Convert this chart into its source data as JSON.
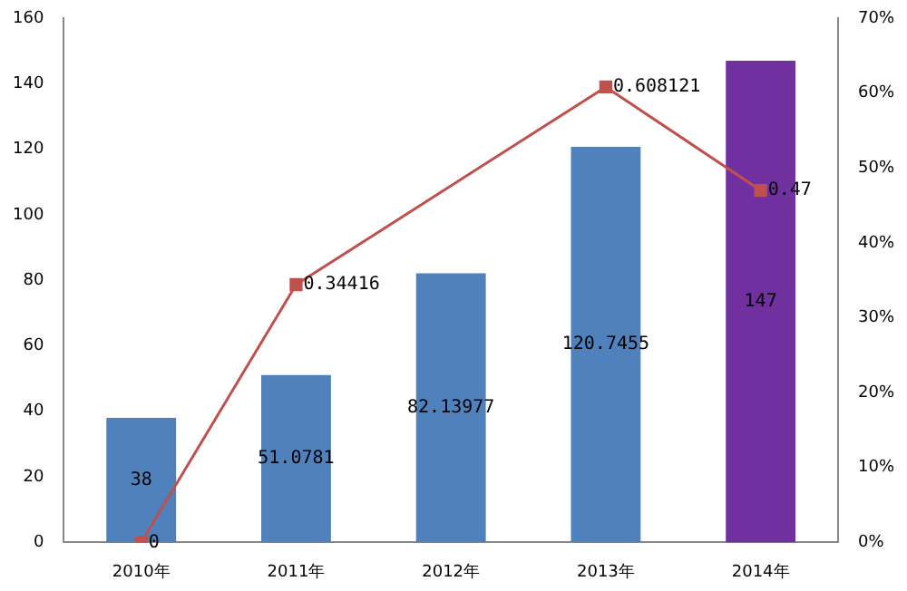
{
  "chart_data": {
    "type": "bar",
    "categories": [
      "2010年",
      "2011年",
      "2012年",
      "2013年",
      "2014年"
    ],
    "series": [
      {
        "colors": [
          "#4f81bd",
          "#4f81bd",
          "#4f81bd",
          "#4f81bd",
          "#7030a0"
        ],
        "values": [
          38,
          51.0781,
          82.13977,
          120.7455,
          147
        ],
        "value_labels": [
          "38",
          "51.0781",
          "82.13977",
          "120.7455",
          "147"
        ]
      },
      {
        "type": "line",
        "axis": "y2",
        "color": "#c0504d",
        "marker": "square",
        "values": [
          0,
          0.34416,
          null,
          0.608121,
          0.47
        ],
        "value_labels": [
          "0",
          "0.34416",
          null,
          "0.608121",
          "0.47"
        ]
      }
    ],
    "ylim": [
      0,
      160
    ],
    "yticks": [
      0,
      20,
      40,
      60,
      80,
      100,
      120,
      140,
      160
    ],
    "y2lim": [
      0,
      0.7
    ],
    "y2ticks": [
      {
        "value": 0,
        "label": "0%"
      },
      {
        "value": 0.1,
        "label": "10%"
      },
      {
        "value": 0.2,
        "label": "20%"
      },
      {
        "value": 0.3,
        "label": "30%"
      },
      {
        "value": 0.4,
        "label": "40%"
      },
      {
        "value": 0.5,
        "label": "50%"
      },
      {
        "value": 0.6,
        "label": "60%"
      },
      {
        "value": 0.7,
        "label": "70%"
      }
    ],
    "legend": false
  }
}
